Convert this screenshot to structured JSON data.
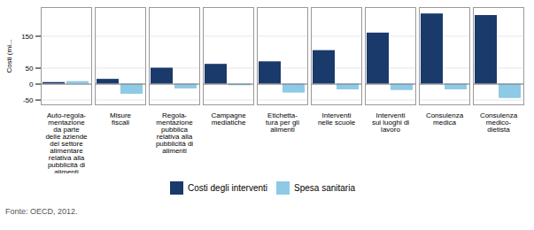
{
  "chart_data": {
    "type": "bar",
    "categories": [
      "Auto-regola-\nmentazione\nda parte\ndelle aziende\ndel settore\nalimentare\nrelativa alla\npubblicità di\nalimenti",
      "Misure\nfiscali",
      "Regola-\nmentazione\npubblica\nrelativa alla\npubblicità di\nalimenti",
      "Campagne\nmediatiche",
      "Etichetta-\ntura per gli\nalimenti",
      "Interventi\nnelle scuole",
      "Interventi\nsui luoghi di\nlavoro",
      "Consulenza\nmedica",
      "Consulenza\nmedico-\ndietista"
    ],
    "series": [
      {
        "name": "Costi degli interventi",
        "color": "#1a3a6b",
        "values": [
          5,
          15,
          50,
          62,
          70,
          105,
          160,
          220,
          215
        ]
      },
      {
        "name": "Spesa sanitaria",
        "color": "#8ecae6",
        "values": [
          8,
          -32,
          -15,
          -5,
          -28,
          -18,
          -20,
          -18,
          -45
        ]
      }
    ],
    "ylabel": "Costi (mi...",
    "ylim": [
      -65,
      240
    ],
    "yticks": [
      -50,
      0,
      50,
      150
    ],
    "grid": true,
    "legend": "bottom",
    "caption": "Fonte: OECD, 2012."
  }
}
